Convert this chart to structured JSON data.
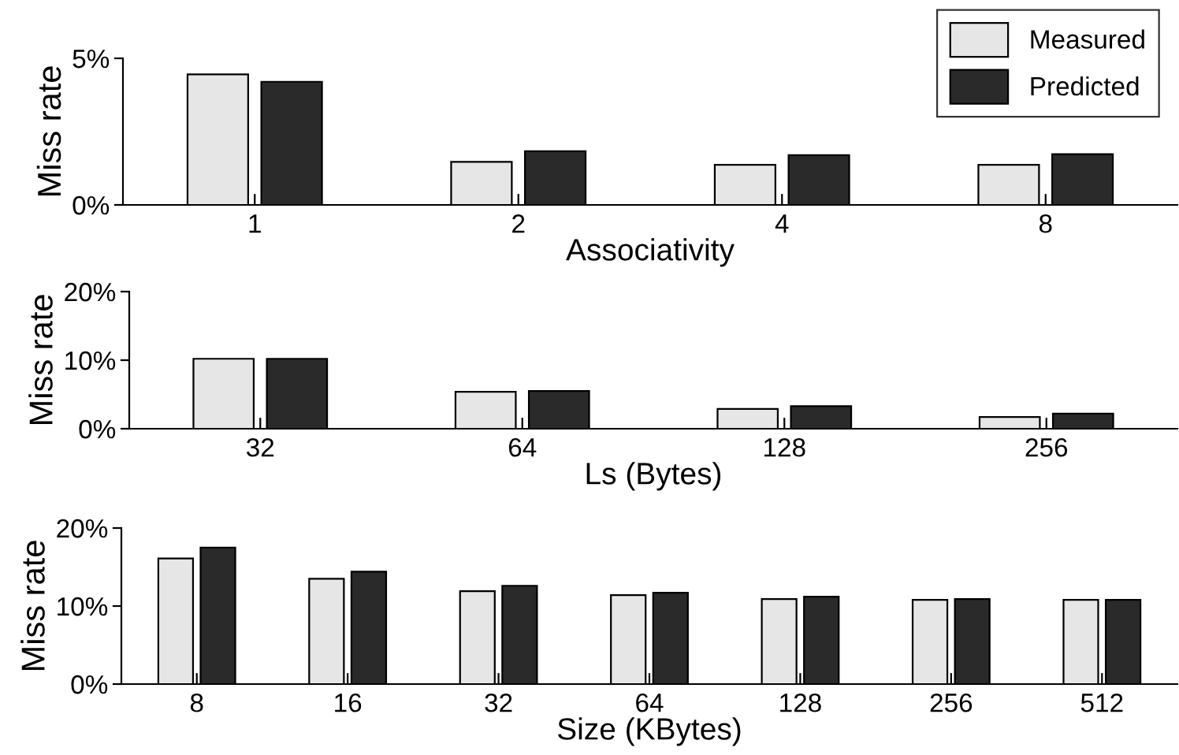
{
  "chart_data": [
    {
      "type": "bar",
      "xlabel": "Associativity",
      "ylabel": "Miss rate",
      "categories": [
        "1",
        "2",
        "4",
        "8"
      ],
      "ylim": [
        0,
        5
      ],
      "yticks": [
        {
          "value": 0,
          "label": "0%"
        },
        {
          "value": 5,
          "label": "5%"
        }
      ],
      "grid": false,
      "legend": "top right",
      "series": [
        {
          "name": "Measured",
          "color": "#e6e6e6",
          "values": [
            4.45,
            1.47,
            1.37,
            1.37
          ]
        },
        {
          "name": "Predicted",
          "color": "#2a2a2a",
          "values": [
            4.2,
            1.83,
            1.7,
            1.73
          ]
        }
      ]
    },
    {
      "type": "bar",
      "xlabel": "Ls (Bytes)",
      "ylabel": "Miss rate",
      "categories": [
        "32",
        "64",
        "128",
        "256"
      ],
      "ylim": [
        0,
        20
      ],
      "yticks": [
        {
          "value": 0,
          "label": "0%"
        },
        {
          "value": 10,
          "label": "10%"
        },
        {
          "value": 20,
          "label": "20%"
        }
      ],
      "grid": false,
      "series": [
        {
          "color": "#e6e6e6",
          "values": [
            10.2,
            5.4,
            2.9,
            1.7
          ]
        },
        {
          "color": "#2a2a2a",
          "values": [
            10.2,
            5.5,
            3.3,
            2.2
          ]
        }
      ]
    },
    {
      "type": "bar",
      "xlabel": "Size (KBytes)",
      "ylabel": "Miss rate",
      "categories": [
        "8",
        "16",
        "32",
        "64",
        "128",
        "256",
        "512"
      ],
      "ylim": [
        0,
        20
      ],
      "yticks": [
        {
          "value": 0,
          "label": "0%"
        },
        {
          "value": 10,
          "label": "10%"
        },
        {
          "value": 20,
          "label": "20%"
        }
      ],
      "grid": false,
      "series": [
        {
          "color": "#e6e6e6",
          "values": [
            16.1,
            13.5,
            11.9,
            11.4,
            10.9,
            10.8,
            10.8
          ]
        },
        {
          "color": "#2a2a2a",
          "values": [
            17.5,
            14.4,
            12.6,
            11.7,
            11.2,
            10.9,
            10.8
          ]
        }
      ]
    }
  ]
}
